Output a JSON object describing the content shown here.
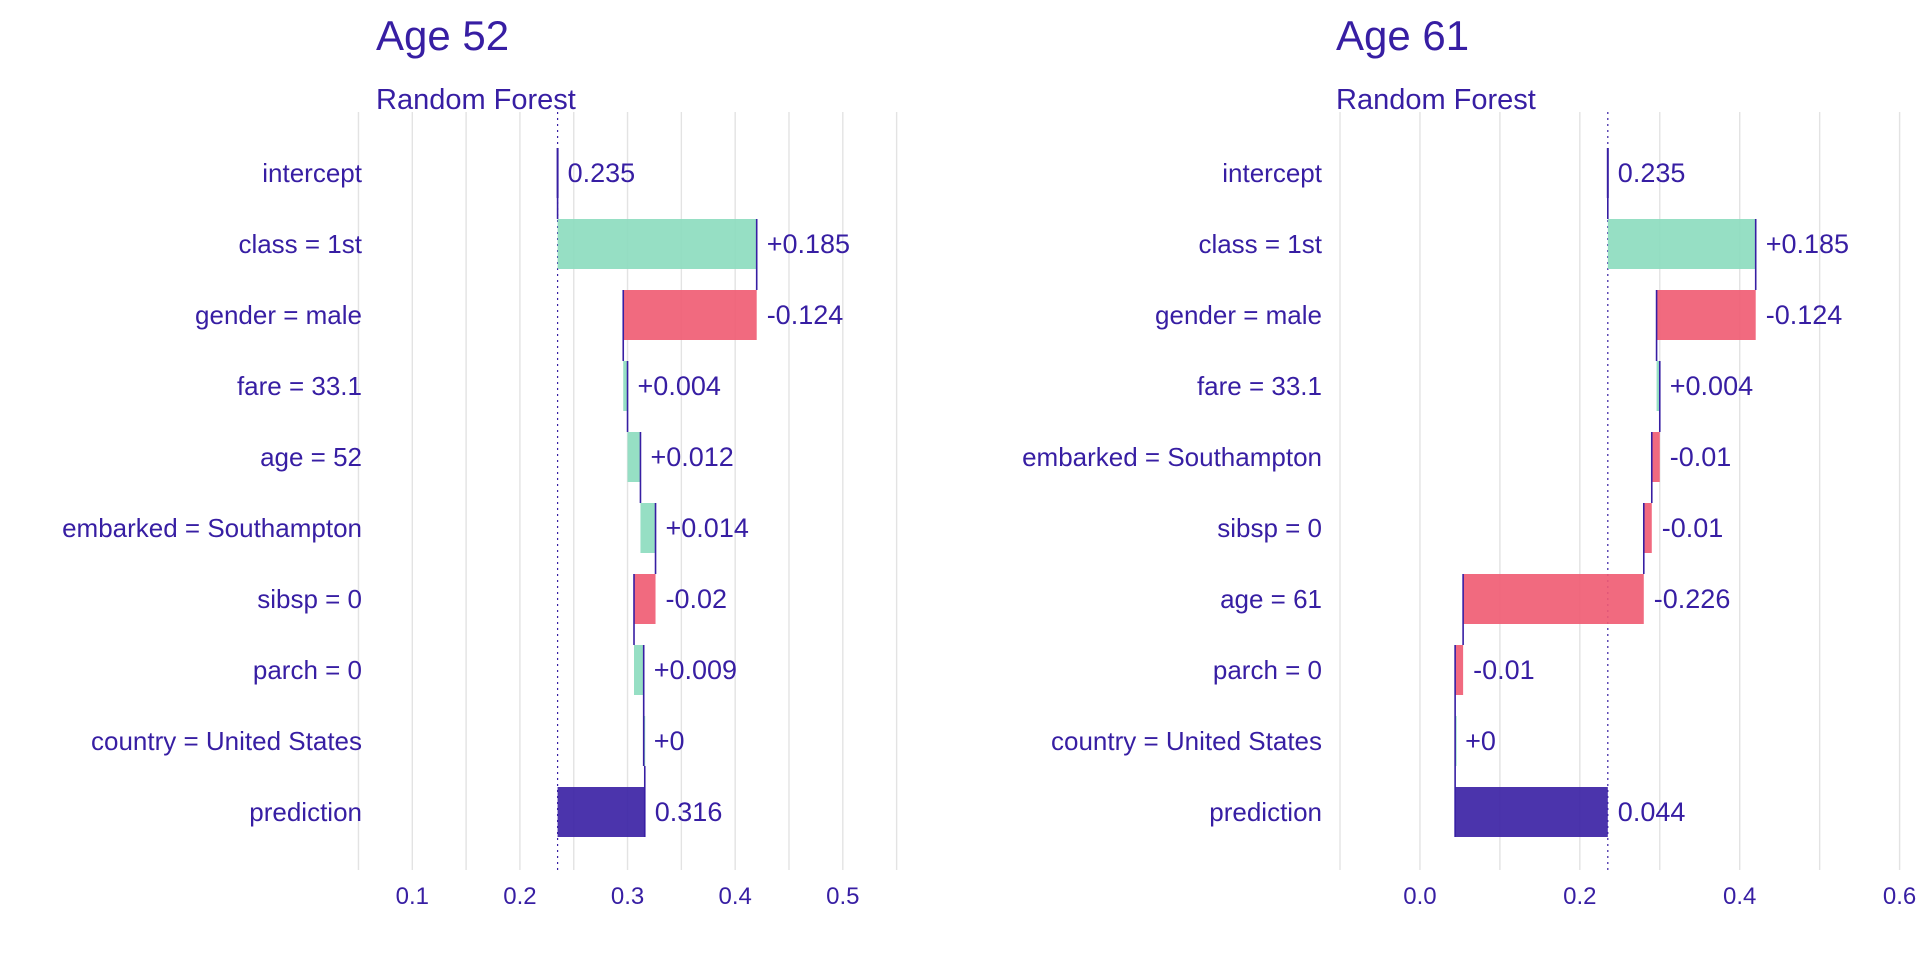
{
  "colors": {
    "text": "#371ea3",
    "positive": "#8bdcbe",
    "negative": "#f05a71",
    "prediction": "#371ea3",
    "grid": "#e3e3e3",
    "connector": "#371ea3"
  },
  "chart_data": [
    {
      "type": "bar",
      "subtype": "waterfall-break-down",
      "title": "Age 52",
      "subtitle": "Random Forest",
      "xlim": [
        0.07,
        0.555
      ],
      "xticks": [
        0.1,
        0.2,
        0.3,
        0.4,
        0.5
      ],
      "xtick_labels": [
        "0.1",
        "0.2",
        "0.3",
        "0.4",
        "0.5"
      ],
      "grid": true,
      "baseline": 0.235,
      "rows": [
        {
          "label": "intercept",
          "start": 0.235,
          "end": 0.235,
          "value_label": "0.235",
          "kind": "intercept"
        },
        {
          "label": "class = 1st",
          "start": 0.235,
          "end": 0.42,
          "value_label": "+0.185",
          "kind": "positive"
        },
        {
          "label": "gender = male",
          "start": 0.42,
          "end": 0.296,
          "value_label": "-0.124",
          "kind": "negative"
        },
        {
          "label": "fare = 33.1",
          "start": 0.296,
          "end": 0.3,
          "value_label": "+0.004",
          "kind": "positive"
        },
        {
          "label": "age = 52",
          "start": 0.3,
          "end": 0.312,
          "value_label": "+0.012",
          "kind": "positive"
        },
        {
          "label": "embarked = Southampton",
          "start": 0.312,
          "end": 0.326,
          "value_label": "+0.014",
          "kind": "positive"
        },
        {
          "label": "sibsp = 0",
          "start": 0.326,
          "end": 0.306,
          "value_label": "-0.02",
          "kind": "negative"
        },
        {
          "label": "parch = 0",
          "start": 0.306,
          "end": 0.315,
          "value_label": "+0.009",
          "kind": "positive"
        },
        {
          "label": "country = United States",
          "start": 0.315,
          "end": 0.315,
          "value_label": "+0",
          "kind": "positive"
        },
        {
          "label": "prediction",
          "start": 0.235,
          "end": 0.316,
          "value_label": "0.316",
          "kind": "prediction"
        }
      ]
    },
    {
      "type": "bar",
      "subtype": "waterfall-break-down",
      "title": "Age 61",
      "subtitle": "Random Forest",
      "xlim": [
        -0.1,
        0.603
      ],
      "xticks": [
        0.0,
        0.2,
        0.4,
        0.6
      ],
      "xtick_labels": [
        "0.0",
        "0.2",
        "0.4",
        "0.6"
      ],
      "grid": true,
      "baseline": 0.235,
      "rows": [
        {
          "label": "intercept",
          "start": 0.235,
          "end": 0.235,
          "value_label": "0.235",
          "kind": "intercept"
        },
        {
          "label": "class = 1st",
          "start": 0.235,
          "end": 0.42,
          "value_label": "+0.185",
          "kind": "positive"
        },
        {
          "label": "gender = male",
          "start": 0.42,
          "end": 0.296,
          "value_label": "-0.124",
          "kind": "negative"
        },
        {
          "label": "fare = 33.1",
          "start": 0.296,
          "end": 0.3,
          "value_label": "+0.004",
          "kind": "positive"
        },
        {
          "label": "embarked = Southampton",
          "start": 0.3,
          "end": 0.29,
          "value_label": "-0.01",
          "kind": "negative"
        },
        {
          "label": "sibsp = 0",
          "start": 0.29,
          "end": 0.28,
          "value_label": "-0.01",
          "kind": "negative"
        },
        {
          "label": "age = 61",
          "start": 0.28,
          "end": 0.054,
          "value_label": "-0.226",
          "kind": "negative"
        },
        {
          "label": "parch = 0",
          "start": 0.054,
          "end": 0.044,
          "value_label": "-0.01",
          "kind": "negative"
        },
        {
          "label": "country = United States",
          "start": 0.044,
          "end": 0.044,
          "value_label": "+0",
          "kind": "positive"
        },
        {
          "label": "prediction",
          "start": 0.235,
          "end": 0.044,
          "value_label": "0.044",
          "kind": "prediction"
        }
      ]
    }
  ]
}
